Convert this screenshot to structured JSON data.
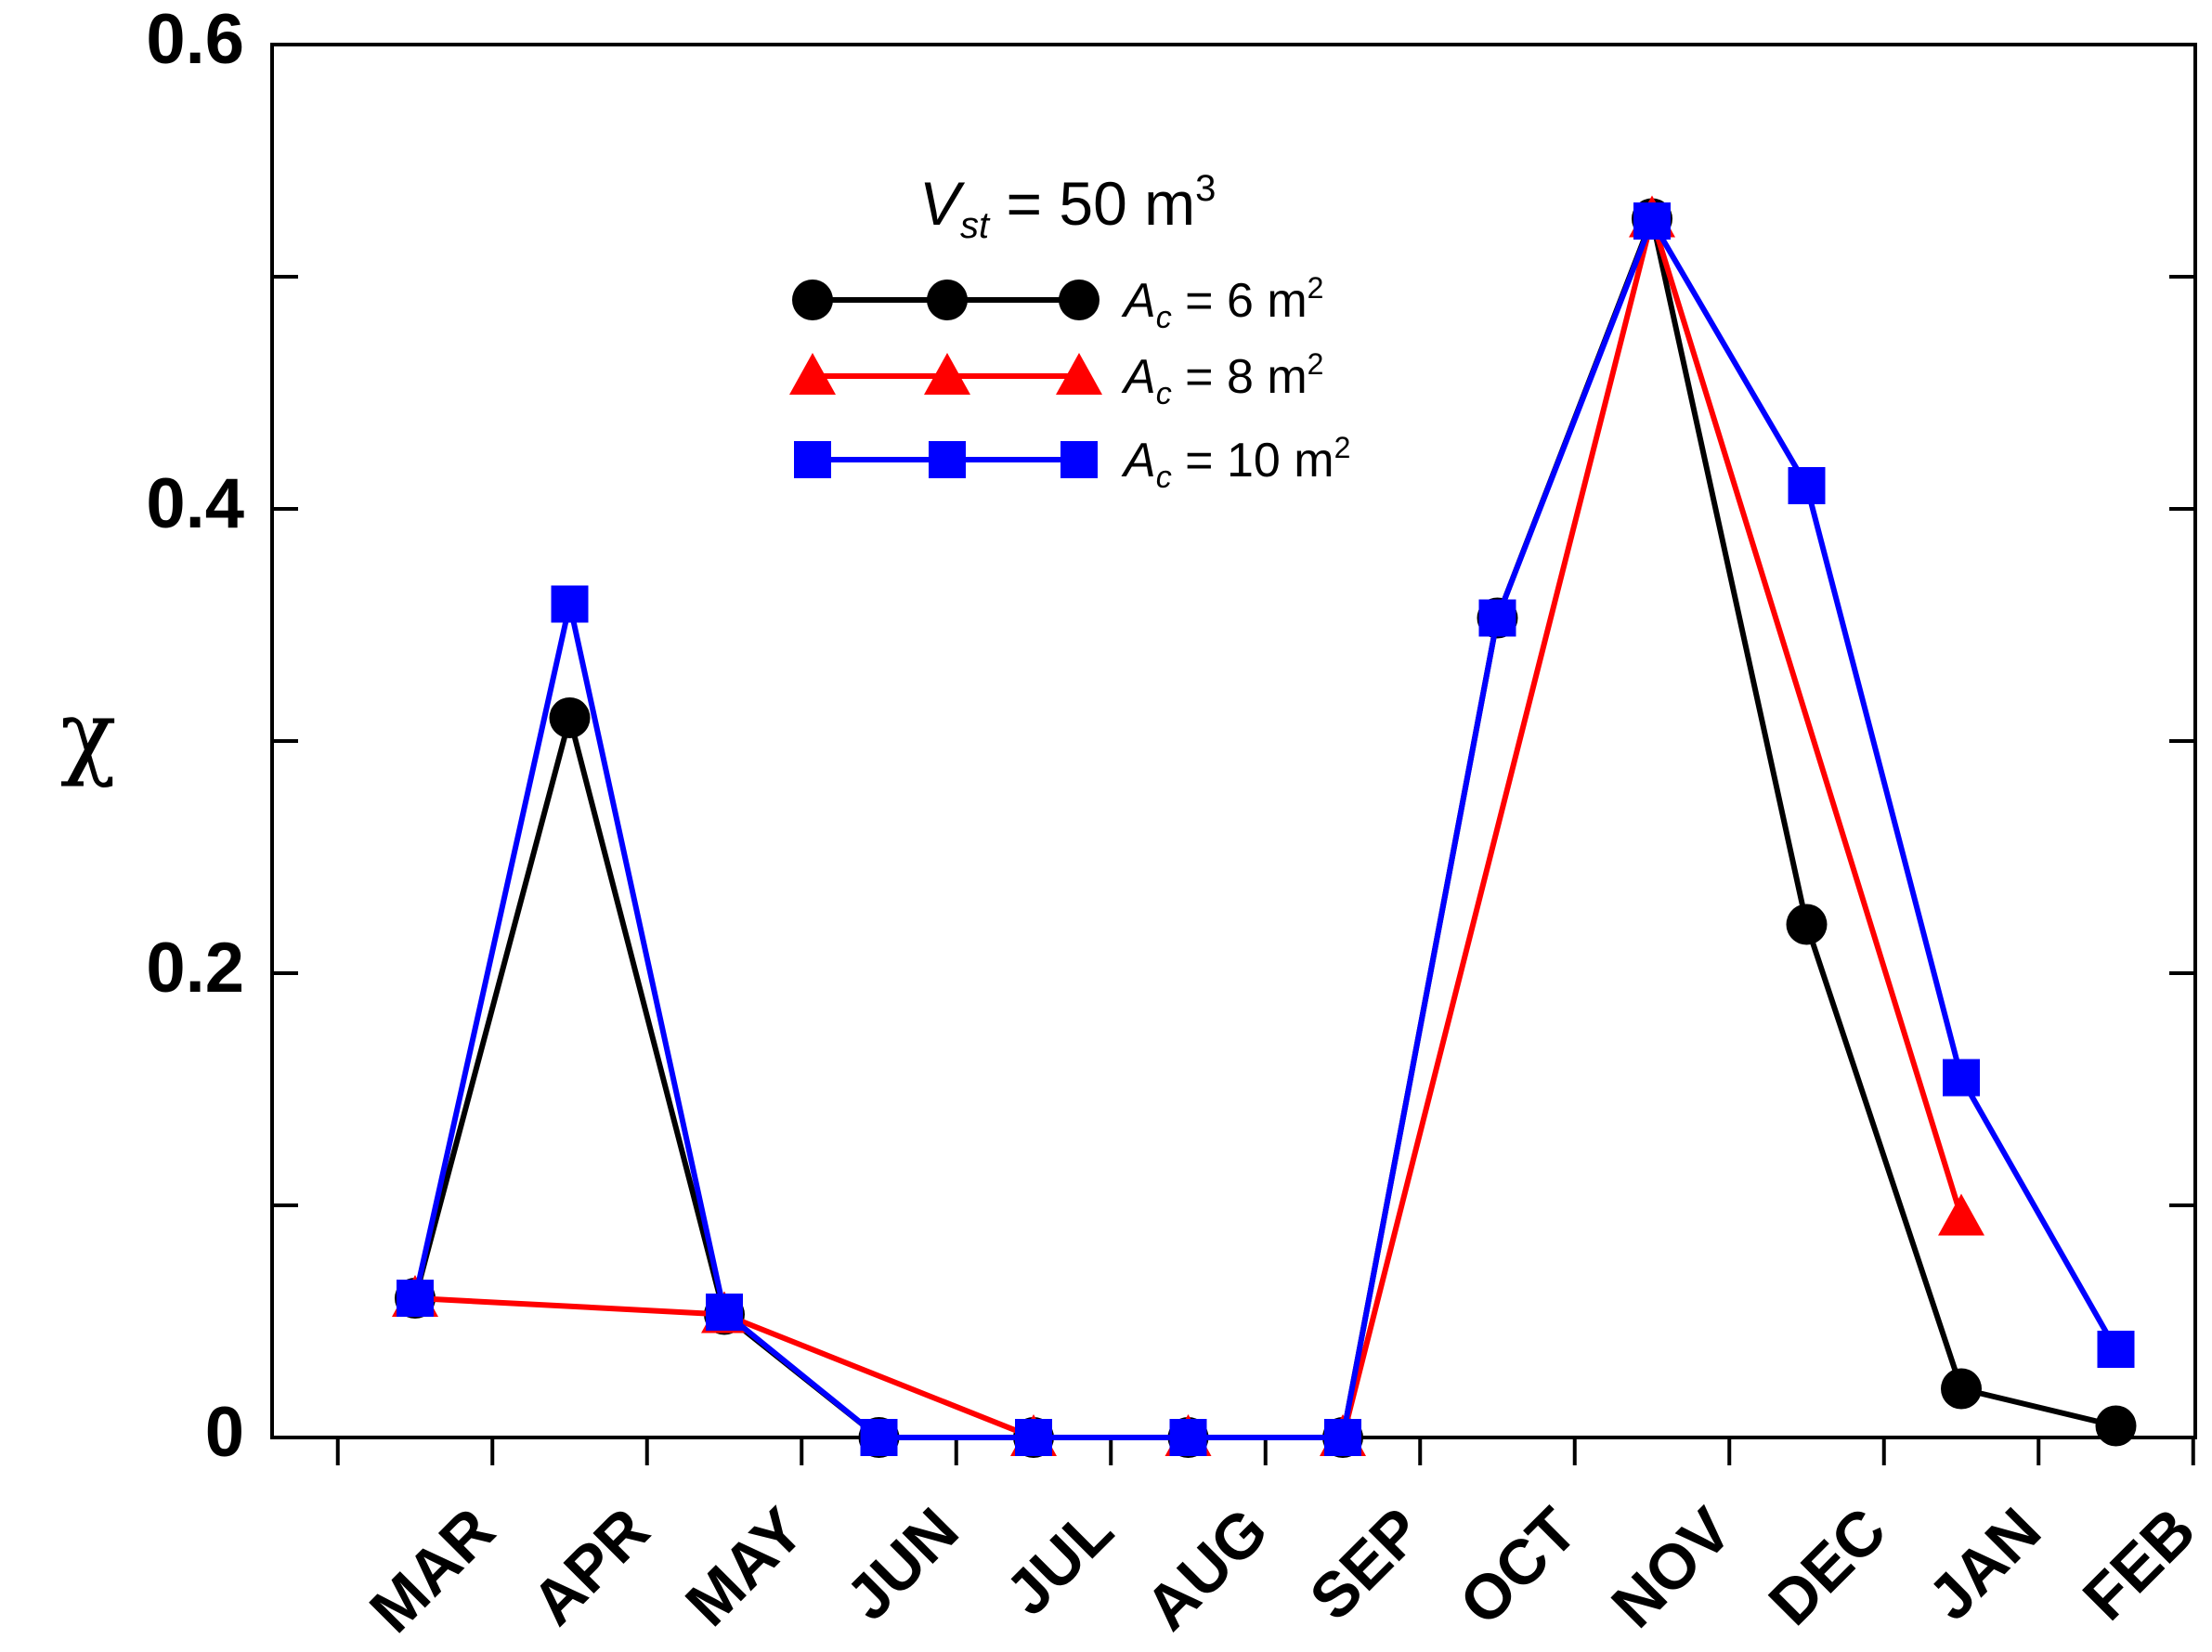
{
  "chart_data": {
    "type": "line",
    "categories": [
      "MAR",
      "APR",
      "MAY",
      "JUN",
      "JUL",
      "AUG",
      "SEP",
      "OCT",
      "NOV",
      "DEC",
      "JAN",
      "FEB"
    ],
    "ylabel": "χ",
    "xlabel": "",
    "ylim": [
      0,
      0.6
    ],
    "yticks": [
      0,
      0.1,
      0.2,
      0.3,
      0.4,
      0.5,
      0.6
    ],
    "ytick_labels": [
      "0",
      "",
      "0.2",
      "",
      "0.4",
      "",
      "0.6"
    ],
    "legend": {
      "title_main": "V",
      "title_sub": "st",
      "title_rest": " = 50 m",
      "title_sup": "3",
      "placement": "top-center"
    },
    "series": [
      {
        "name_main": "A",
        "name_sub": "c",
        "name_rest": " = 6 m",
        "name_sup": "2",
        "color": "#000000",
        "marker": "circle",
        "values": [
          0.06,
          0.31,
          0.053,
          0.0,
          0.0,
          0.0,
          0.0,
          0.353,
          0.525,
          0.221,
          0.021,
          0.005
        ]
      },
      {
        "name_main": "A",
        "name_sub": "c",
        "name_rest": " = 8 m",
        "name_sup": "2",
        "color": "#ff0000",
        "marker": "triangle",
        "values": [
          0.06,
          null,
          0.053,
          null,
          0.0,
          0.0,
          0.0,
          null,
          0.525,
          null,
          0.095,
          null
        ]
      },
      {
        "name_main": "A",
        "name_sub": "c",
        "name_rest": " = 10 m",
        "name_sup": "2",
        "color": "#0000ff",
        "marker": "square",
        "values": [
          0.06,
          0.359,
          0.054,
          0.0,
          0.0,
          0.0,
          0.0,
          0.353,
          0.524,
          0.41,
          0.155,
          0.038
        ]
      }
    ]
  }
}
